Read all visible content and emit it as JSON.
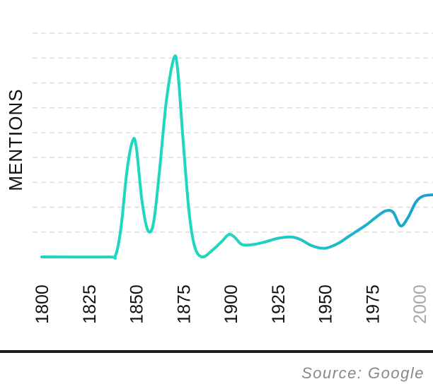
{
  "chart_data": {
    "type": "line",
    "title": "",
    "xlabel": "",
    "ylabel": "MENTIONS",
    "x_ticks": [
      "1800",
      "1825",
      "1850",
      "1875",
      "1900",
      "1925",
      "1950",
      "1975",
      "2000"
    ],
    "muted_ticks": [
      "2000"
    ],
    "xlim": [
      1800,
      2008
    ],
    "ylim": [
      0,
      9
    ],
    "grid": true,
    "series": [
      {
        "x": [
          1800,
          1835,
          1839,
          1842,
          1845,
          1848,
          1850,
          1853,
          1856,
          1859,
          1862,
          1866,
          1870,
          1872,
          1875,
          1878,
          1881,
          1885,
          1890,
          1895,
          1899,
          1902,
          1906,
          1912,
          1918,
          1925,
          1932,
          1937,
          1943,
          1950,
          1957,
          1962,
          1967,
          1972,
          1977,
          1982,
          1986,
          1990,
          1994,
          1998,
          2002,
          2008
        ],
        "y": [
          0,
          0,
          0.05,
          1.2,
          3.4,
          4.65,
          4.45,
          2.3,
          1.1,
          1.3,
          3.2,
          6.3,
          8.0,
          7.5,
          4.5,
          1.8,
          0.4,
          0,
          0.25,
          0.6,
          0.9,
          0.8,
          0.5,
          0.5,
          0.6,
          0.75,
          0.8,
          0.7,
          0.45,
          0.35,
          0.55,
          0.8,
          1.05,
          1.3,
          1.6,
          1.85,
          1.8,
          1.25,
          1.6,
          2.2,
          2.45,
          2.5
        ]
      }
    ],
    "colors": {
      "start": "#1fd6bf",
      "end": "#1a9fd3"
    }
  },
  "footer": {
    "source": "Source: Google"
  }
}
